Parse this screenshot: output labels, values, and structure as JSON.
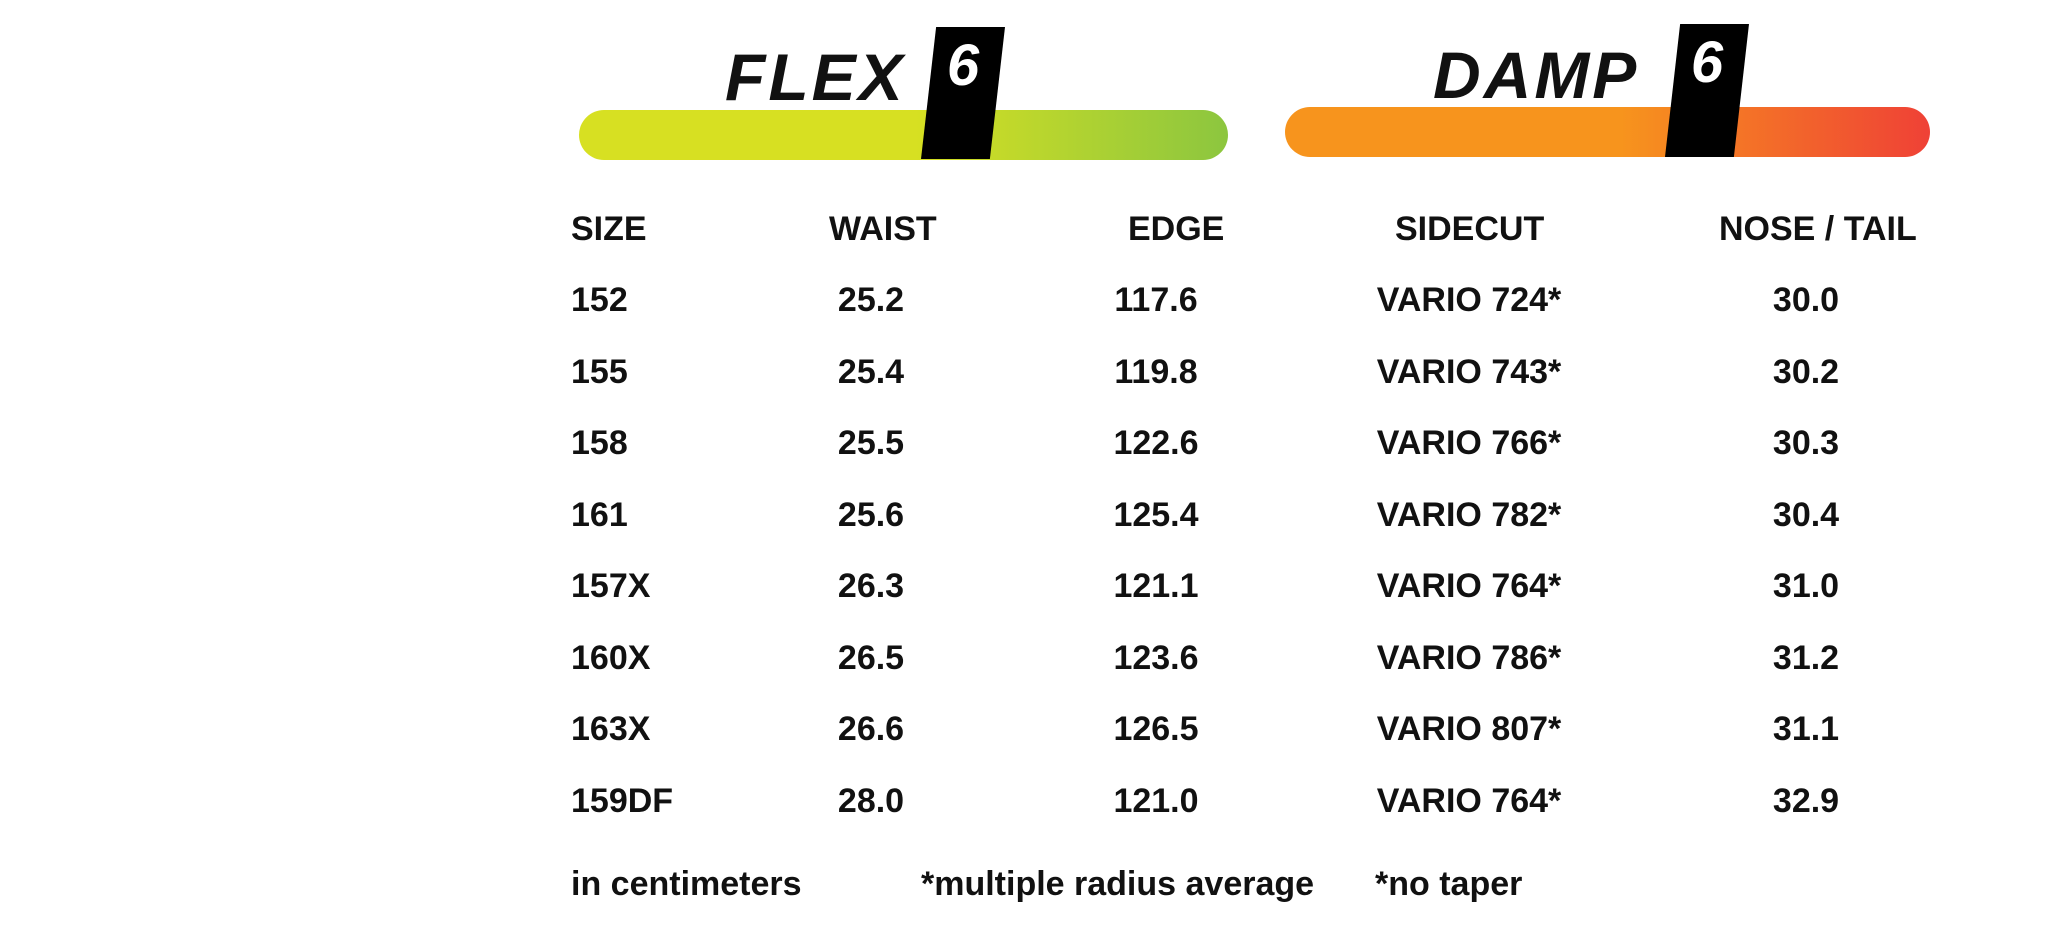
{
  "flex": {
    "label": "FLEX",
    "value": "6"
  },
  "damp": {
    "label": "DAMP",
    "value": "6"
  },
  "table": {
    "headers": [
      "SIZE",
      "WAIST",
      "EDGE",
      "SIDECUT",
      "NOSE / TAIL"
    ],
    "rows": [
      [
        "152",
        "25.2",
        "117.6",
        "VARIO 724*",
        "30.0"
      ],
      [
        "155",
        "25.4",
        "119.8",
        "VARIO 743*",
        "30.2"
      ],
      [
        "158",
        "25.5",
        "122.6",
        "VARIO 766*",
        "30.3"
      ],
      [
        "161",
        "25.6",
        "125.4",
        "VARIO 782*",
        "30.4"
      ],
      [
        "157X",
        "26.3",
        "121.1",
        "VARIO 764*",
        "31.0"
      ],
      [
        "160X",
        "26.5",
        "123.6",
        "VARIO 786*",
        "31.2"
      ],
      [
        "163X",
        "26.6",
        "126.5",
        "VARIO 807*",
        "31.1"
      ],
      [
        "159DF",
        "28.0",
        "121.0",
        "VARIO 764*",
        "32.9"
      ]
    ]
  },
  "footnotes": [
    "in centimeters",
    "*multiple radius average",
    "*no taper"
  ]
}
